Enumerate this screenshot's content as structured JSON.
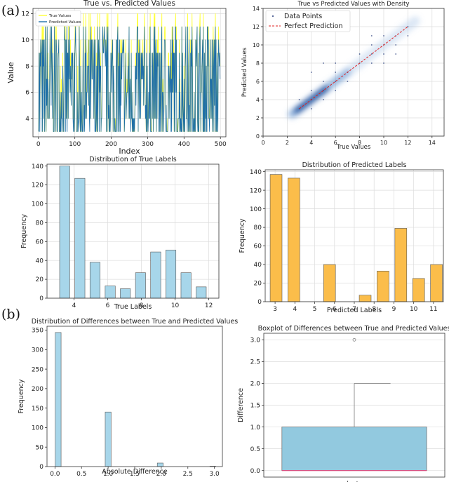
{
  "panel_labels": {
    "a": "(a)",
    "b": "(b)"
  },
  "colors": {
    "true_line": "#ffff33",
    "pred_line": "#1f6fa8",
    "light_blue": "#a7d6ea",
    "orange": "#fbbd4a",
    "box_fill": "#92c9df",
    "median": "#e0457b",
    "perfect": "#e02020",
    "density": "#1b4f9c"
  },
  "chart_data": [
    {
      "id": "line",
      "type": "line",
      "title": "True vs. Predicted Values",
      "xlabel": "Index",
      "ylabel": "Value",
      "xlim": [
        -15,
        515
      ],
      "ylim": [
        2.6,
        12.4
      ],
      "xticks": [
        0,
        100,
        200,
        300,
        400,
        500
      ],
      "yticks": [
        4,
        6,
        8,
        10,
        12
      ],
      "grid": true,
      "legend_position": "top-left",
      "series": [
        {
          "name": "True Values",
          "values": []
        },
        {
          "name": "Predicted Values",
          "values": []
        }
      ]
    },
    {
      "id": "density",
      "type": "scatter",
      "title": "True vs Predicted Values with Density",
      "xlabel": "True Values",
      "ylabel": "Predicted Values",
      "xlim": [
        0,
        15
      ],
      "ylim": [
        0,
        14
      ],
      "xticks": [
        0,
        2,
        4,
        6,
        8,
        10,
        12,
        14
      ],
      "yticks": [
        0,
        2,
        4,
        6,
        8,
        10,
        12,
        14
      ],
      "grid": true,
      "legend_position": "top-left",
      "legend": [
        "Data Points",
        "Perfect Prediction"
      ],
      "points": [
        [
          3,
          3
        ],
        [
          3,
          4
        ],
        [
          4,
          3
        ],
        [
          4,
          4
        ],
        [
          4,
          5
        ],
        [
          4,
          7
        ],
        [
          5,
          4
        ],
        [
          5,
          5
        ],
        [
          5,
          6
        ],
        [
          5,
          8
        ],
        [
          6,
          5
        ],
        [
          6,
          6
        ],
        [
          6,
          7
        ],
        [
          6,
          8
        ],
        [
          7,
          7
        ],
        [
          7,
          6
        ],
        [
          8,
          8
        ],
        [
          8,
          9
        ],
        [
          9,
          8
        ],
        [
          9,
          9
        ],
        [
          9,
          10
        ],
        [
          9,
          11
        ],
        [
          10,
          9
        ],
        [
          10,
          10
        ],
        [
          10,
          11
        ],
        [
          10,
          8
        ],
        [
          11,
          10
        ],
        [
          11,
          11
        ],
        [
          11,
          9
        ],
        [
          12,
          11
        ],
        [
          12,
          12
        ]
      ],
      "perfect_line": [
        [
          3,
          3
        ],
        [
          12,
          12
        ]
      ]
    },
    {
      "id": "true_hist",
      "type": "bar",
      "title": "Distribution of True Labels",
      "xlabel": "True Labels",
      "ylabel": "Frequency",
      "xlim": [
        2.4,
        12.6
      ],
      "ylim": [
        0,
        142
      ],
      "xticks": [
        4,
        6,
        8,
        10,
        12
      ],
      "yticks": [
        0,
        20,
        40,
        60,
        80,
        100,
        120,
        140
      ],
      "grid": true,
      "bin_centers": [
        3.45,
        4.35,
        5.25,
        6.15,
        7.05,
        7.95,
        8.85,
        9.75,
        10.65,
        11.55
      ],
      "bin_width": 0.6,
      "values": [
        140,
        127,
        38,
        13,
        10,
        27,
        49,
        51,
        27,
        12
      ]
    },
    {
      "id": "pred_hist",
      "type": "bar",
      "title": "Distribution of Predicted Labels",
      "xlabel": "Predicted Labels",
      "ylabel": "Frequency",
      "xlim": [
        2.5,
        11.5
      ],
      "ylim": [
        0,
        142
      ],
      "xticks": [
        3,
        4,
        5,
        6,
        7,
        8,
        9,
        10,
        11
      ],
      "yticks": [
        0,
        20,
        40,
        60,
        80,
        100,
        120,
        140
      ],
      "grid": true,
      "bin_centers": [
        3.05,
        3.95,
        4.85,
        5.75,
        6.65,
        7.55,
        8.45,
        9.35,
        10.25,
        11.15
      ],
      "bin_width": 0.6,
      "values": [
        137,
        133,
        0,
        40,
        0,
        7,
        33,
        79,
        25,
        40
      ]
    },
    {
      "id": "diff_hist",
      "type": "bar",
      "title": "Distribution of Differences between True and Predicted Values",
      "xlabel": "Absolute Difference",
      "ylabel": "Frequency",
      "xlim": [
        -0.15,
        3.15
      ],
      "ylim": [
        0,
        360
      ],
      "xticks": [
        0.0,
        0.5,
        1.0,
        1.5,
        2.0,
        2.5,
        3.0
      ],
      "yticks": [
        0,
        50,
        100,
        150,
        200,
        250,
        300,
        350
      ],
      "grid": false,
      "bin_centers": [
        0.06,
        1.0,
        1.98,
        2.97
      ],
      "bin_width": 0.11,
      "values": [
        344,
        140,
        9,
        1
      ]
    },
    {
      "id": "boxplot",
      "type": "box",
      "title": "Boxplot of Differences between True and Predicted Values",
      "xlabel": "cluster",
      "ylabel": "Difference",
      "ylim": [
        -0.15,
        3.15
      ],
      "yticks": [
        0.0,
        0.5,
        1.0,
        1.5,
        2.0,
        2.5,
        3.0
      ],
      "grid": true,
      "whisker_low": 0.0,
      "q1": 0.0,
      "median": 0.0,
      "q3": 1.0,
      "whisker_high": 2.0,
      "outliers": [
        3.0
      ]
    }
  ]
}
